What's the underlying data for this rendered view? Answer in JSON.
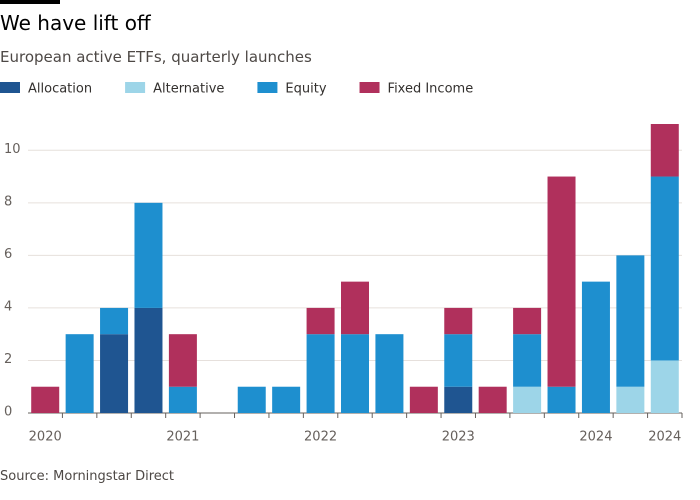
{
  "chart_data": {
    "type": "stacked-bar",
    "title": "We have lift off",
    "subtitle": "European active ETFs, quarterly launches",
    "source": "Source: Morningstar Direct",
    "categories": [
      "2020",
      null,
      null,
      null,
      "2021",
      null,
      null,
      null,
      "2022",
      null,
      null,
      null,
      "2023",
      null,
      null,
      null,
      "2024",
      null,
      "2024"
    ],
    "series": [
      {
        "name": "Allocation",
        "color": "#1f5591",
        "values": [
          0,
          0,
          3,
          4,
          0,
          0,
          0,
          0,
          0,
          0,
          0,
          0,
          1,
          0,
          0,
          0,
          0,
          0,
          0
        ]
      },
      {
        "name": "Alternative",
        "color": "#9dd5e8",
        "values": [
          0,
          0,
          0,
          0,
          0,
          0,
          0,
          0,
          0,
          0,
          0,
          0,
          0,
          0,
          1,
          0,
          0,
          1,
          2
        ]
      },
      {
        "name": "Equity",
        "color": "#1e8fcf",
        "values": [
          0,
          3,
          1,
          4,
          1,
          0,
          1,
          1,
          3,
          3,
          3,
          0,
          2,
          0,
          2,
          1,
          5,
          5,
          7
        ]
      },
      {
        "name": "Fixed Income",
        "color": "#b0305c",
        "values": [
          1,
          0,
          0,
          0,
          2,
          0,
          0,
          0,
          1,
          2,
          0,
          1,
          1,
          1,
          1,
          8,
          0,
          0,
          2
        ]
      }
    ],
    "ylim": [
      0,
      11
    ],
    "yticks": [
      0,
      2,
      4,
      6,
      8,
      10
    ],
    "grid": true
  }
}
